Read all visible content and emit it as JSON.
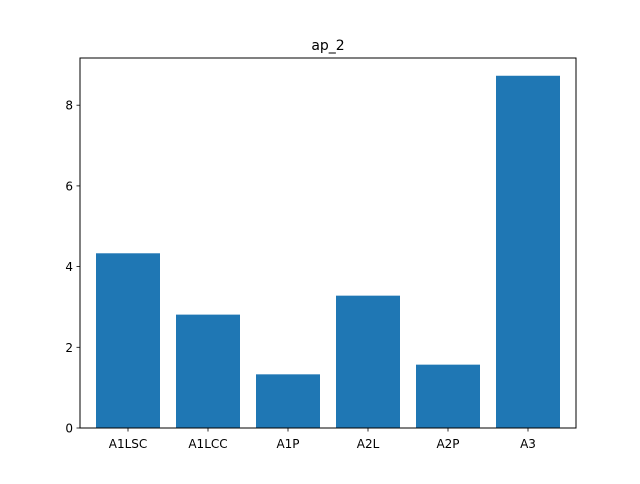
{
  "chart_data": {
    "type": "bar",
    "title": "ap_2",
    "xlabel": "",
    "ylabel": "",
    "categories": [
      "A1LSC",
      "A1LCC",
      "A1P",
      "A2L",
      "A2P",
      "A3"
    ],
    "values": [
      4.33,
      2.81,
      1.33,
      3.28,
      1.57,
      8.73
    ],
    "ylim": [
      0,
      9.17
    ],
    "yticks": [
      0,
      2,
      4,
      6,
      8
    ],
    "grid": false,
    "legend": "none",
    "bar_color": "#1f77b4"
  }
}
